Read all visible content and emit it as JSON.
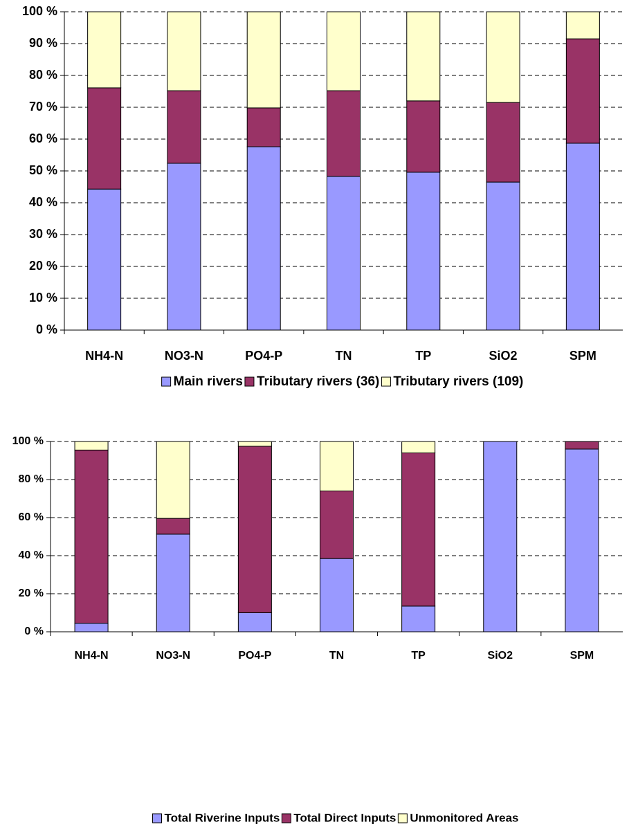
{
  "chart_data": [
    {
      "type": "stacked_bar",
      "categories": [
        "NH4-N",
        "NO3-N",
        "PO4-P",
        "TN",
        "TP",
        "SiO2",
        "SPM"
      ],
      "series": [
        {
          "name": "Main rivers",
          "color": "#9999ff",
          "values": [
            44.3,
            52.4,
            57.6,
            48.3,
            49.6,
            46.5,
            58.7
          ]
        },
        {
          "name": "Tributary rivers (36)",
          "color": "#993366",
          "values": [
            31.8,
            22.8,
            12.2,
            26.9,
            22.4,
            25,
            32.8
          ]
        },
        {
          "name": "Tributary rivers (109)",
          "color": "#ffffcc",
          "values": [
            23.9,
            24.8,
            30.2,
            24.8,
            28,
            28.5,
            8.5
          ]
        }
      ],
      "ylim": [
        0,
        100
      ],
      "yticks": [
        {
          "value": 0,
          "label": "0 %"
        },
        {
          "value": 10,
          "label": "10 %"
        },
        {
          "value": 20,
          "label": "20 %"
        },
        {
          "value": 30,
          "label": "30 %"
        },
        {
          "value": 40,
          "label": "40 %"
        },
        {
          "value": 50,
          "label": "50 %"
        },
        {
          "value": 60,
          "label": "60 %"
        },
        {
          "value": 70,
          "label": "70 %"
        },
        {
          "value": 80,
          "label": "80 %"
        },
        {
          "value": 90,
          "label": "90 %"
        },
        {
          "value": 100,
          "label": "100 %"
        }
      ],
      "grid": true,
      "legend": "bottom"
    },
    {
      "type": "stacked_bar",
      "categories": [
        "NH4-N",
        "NO3-N",
        "PO4-P",
        "TN",
        "TP",
        "SiO2",
        "SPM"
      ],
      "series": [
        {
          "name": "Total Riverine Inputs",
          "color": "#9999ff",
          "values": [
            4.5,
            51.3,
            10,
            38.5,
            13.5,
            100,
            96
          ]
        },
        {
          "name": "Total Direct Inputs",
          "color": "#993366",
          "values": [
            91,
            8.3,
            87.5,
            35.5,
            80.5,
            0,
            4
          ]
        },
        {
          "name": "Unmonitored Areas",
          "color": "#ffffcc",
          "values": [
            4.5,
            40.4,
            2.5,
            26,
            6,
            0,
            0
          ]
        }
      ],
      "ylim": [
        0,
        100
      ],
      "yticks": [
        {
          "value": 0,
          "label": "0 %"
        },
        {
          "value": 20,
          "label": "20 %"
        },
        {
          "value": 40,
          "label": "40 %"
        },
        {
          "value": 60,
          "label": "60 %"
        },
        {
          "value": 80,
          "label": "80 %"
        },
        {
          "value": 100,
          "label": "100 %"
        }
      ],
      "grid": true,
      "legend": "bottom"
    }
  ]
}
